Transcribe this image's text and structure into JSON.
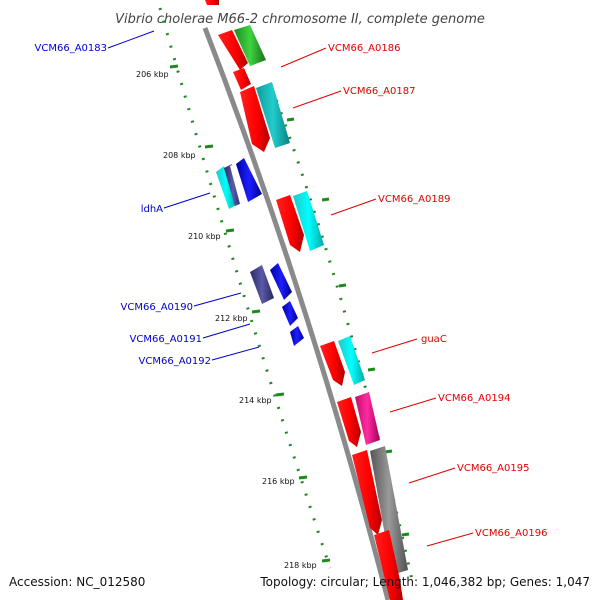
{
  "title": "Vibrio cholerae M66-2 chromosome II, complete genome",
  "accession_text": "Accession: NC_012580",
  "topology_text": "Topology: circular; Length: 1,046,382 bp; Genes: 1,047",
  "colors": {
    "backbone": "#8a8a8a",
    "tick": "#1e8a1e",
    "label_forward": "#e00000",
    "label_reverse": "#0000cc"
  },
  "kbp_ticks": [
    "206 kbp",
    "208 kbp",
    "210 kbp",
    "212 kbp",
    "214 kbp",
    "216 kbp",
    "218 kbp"
  ],
  "genes_forward": [
    {
      "label": "VCM66_A0186",
      "color": "#e00000"
    },
    {
      "label": "VCM66_A0187",
      "color": "#e00000"
    },
    {
      "label": "VCM66_A0189",
      "color": "#e00000"
    },
    {
      "label": "guaC",
      "color": "#e00000"
    },
    {
      "label": "VCM66_A0194",
      "color": "#e00000"
    },
    {
      "label": "VCM66_A0195",
      "color": "#e00000"
    },
    {
      "label": "VCM66_A0196",
      "color": "#e00000"
    }
  ],
  "genes_reverse": [
    {
      "label": "VCM66_A0183",
      "color": "#0000cc"
    },
    {
      "label": "ldhA",
      "color": "#0000cc"
    },
    {
      "label": "VCM66_A0190",
      "color": "#0000cc"
    },
    {
      "label": "VCM66_A0191",
      "color": "#0000cc"
    },
    {
      "label": "VCM66_A0192",
      "color": "#0000cc"
    }
  ]
}
